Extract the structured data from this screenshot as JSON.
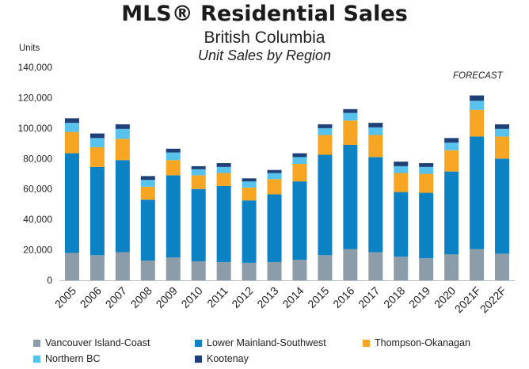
{
  "chart_data": {
    "type": "bar",
    "stacked": true,
    "title": "MLS® Residential Sales",
    "subtitle": "British Columbia",
    "subtitle2": "Unit Sales by Region",
    "ylabel": "Units",
    "annotation": "FORECAST",
    "ylim": [
      0,
      140000
    ],
    "yticks": [
      "0",
      "20,000",
      "40,000",
      "60,000",
      "80,000",
      "100,000",
      "120,000",
      "140,000"
    ],
    "yticks_values": [
      0,
      20000,
      40000,
      60000,
      80000,
      100000,
      120000,
      140000
    ],
    "grid": false,
    "legend_position": "bottom",
    "categories": [
      "2005",
      "2006",
      "2007",
      "2008",
      "2009",
      "2010",
      "2011",
      "2012",
      "2013",
      "2014",
      "2015",
      "2016",
      "2017",
      "2018",
      "2019",
      "2020",
      "2021F",
      "2022F"
    ],
    "series": [
      {
        "name": "Vancouver Island-Coast",
        "color": "#8c9ca9",
        "values": [
          18000,
          16500,
          18500,
          13000,
          15000,
          12500,
          12000,
          11500,
          12000,
          13500,
          16500,
          20500,
          18500,
          15500,
          14500,
          17000,
          20500,
          17500
        ]
      },
      {
        "name": "Lower Mainland-Southwest",
        "color": "#0a82c4",
        "values": [
          65500,
          58000,
          60500,
          40000,
          54000,
          47500,
          50000,
          41000,
          44500,
          51500,
          66000,
          68500,
          62500,
          42500,
          43000,
          54500,
          74000,
          62500
        ]
      },
      {
        "name": "Thompson-Okanagan",
        "color": "#f6a623",
        "values": [
          14000,
          13000,
          14000,
          8500,
          10000,
          9000,
          8500,
          8500,
          10000,
          11500,
          13000,
          16000,
          14500,
          12500,
          12500,
          14000,
          17500,
          14500
        ]
      },
      {
        "name": "Northern BC",
        "color": "#57c2ec",
        "values": [
          6000,
          6000,
          6500,
          4500,
          5000,
          4000,
          4000,
          4000,
          4000,
          4500,
          4500,
          5000,
          5000,
          4500,
          4500,
          5000,
          6000,
          5000
        ]
      },
      {
        "name": "Kootenay",
        "color": "#1f3f78",
        "values": [
          3000,
          3000,
          3000,
          2500,
          2500,
          2000,
          2500,
          2000,
          2000,
          2500,
          2500,
          2500,
          3000,
          3000,
          2500,
          3000,
          3500,
          3000
        ]
      }
    ]
  }
}
